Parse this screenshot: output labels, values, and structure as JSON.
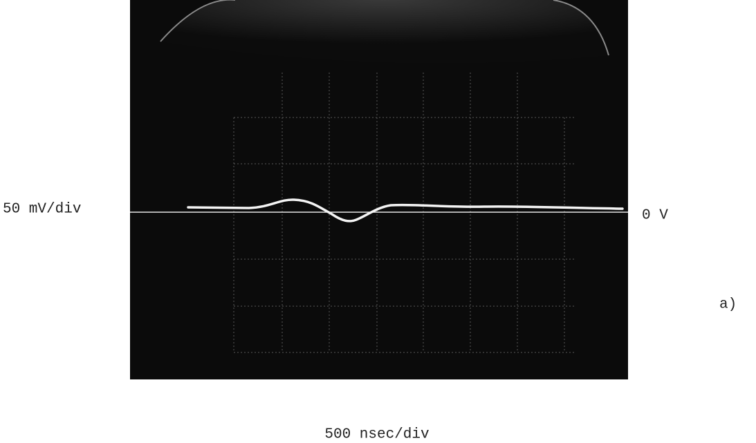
{
  "labels": {
    "vertical_scale": "50 mV/div",
    "zero_level": "0 V",
    "panel": "a)",
    "horizontal_scale": "500 nsec/div"
  }
}
